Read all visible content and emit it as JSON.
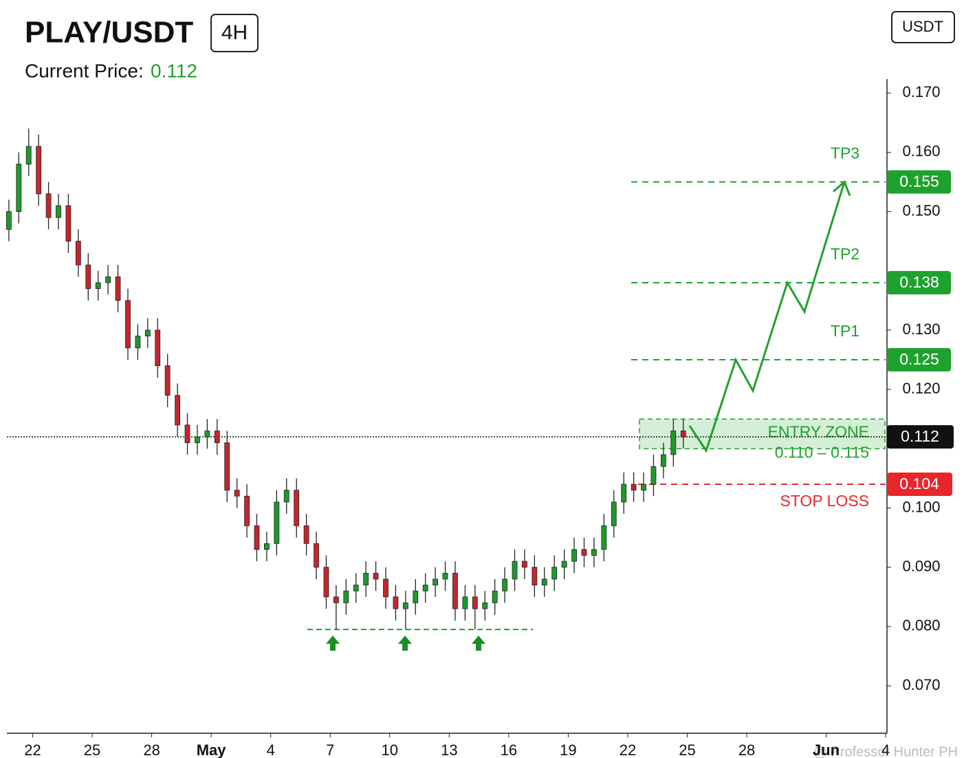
{
  "chart_data": {
    "type": "candlestick",
    "title": "PLAY/USDT",
    "timeframe": "4H",
    "currency_button": "USDT",
    "current_price_label": "Current Price:",
    "current_price": 0.112,
    "watermark": "@ Professor Hunter PH",
    "up_color": "#1e9a2b",
    "down_color": "#c4262e",
    "level_color": "#1fa12e",
    "stop_color": "#e8262b",
    "x": [
      -1.2,
      -0.7,
      -0.2,
      0.3,
      0.8,
      1.3,
      1.8,
      2.3,
      2.8,
      3.3,
      3.8,
      4.3,
      4.8,
      5.3,
      5.8,
      6.3,
      6.8,
      7.3,
      7.8,
      8.3,
      8.8,
      9.3,
      9.8,
      10.3,
      10.8,
      11.3,
      11.8,
      12.3,
      12.8,
      13.3,
      13.8,
      14.3,
      14.8,
      15.3,
      15.8,
      16.3,
      16.8,
      17.3,
      17.8,
      18.3,
      18.8,
      19.3,
      19.8,
      20.3,
      20.8,
      21.3,
      21.8,
      22.3,
      22.8,
      23.3,
      23.8,
      24.3,
      24.8,
      25.3,
      25.8,
      26.3,
      26.8,
      27.3,
      27.8,
      28.3,
      28.8,
      29.3,
      29.8,
      30.3,
      30.8,
      31.3,
      31.8,
      32.3,
      32.8
    ],
    "open": [
      0.147,
      0.15,
      0.158,
      0.161,
      0.153,
      0.149,
      0.151,
      0.145,
      0.141,
      0.137,
      0.138,
      0.139,
      0.135,
      0.127,
      0.129,
      0.13,
      0.124,
      0.119,
      0.114,
      0.111,
      0.112,
      0.113,
      0.111,
      0.103,
      0.102,
      0.097,
      0.093,
      0.094,
      0.101,
      0.103,
      0.097,
      0.094,
      0.09,
      0.085,
      0.084,
      0.086,
      0.087,
      0.089,
      0.088,
      0.085,
      0.083,
      0.084,
      0.086,
      0.087,
      0.088,
      0.089,
      0.083,
      0.085,
      0.083,
      0.084,
      0.086,
      0.088,
      0.091,
      0.09,
      0.087,
      0.088,
      0.09,
      0.091,
      0.093,
      0.092,
      0.093,
      0.097,
      0.101,
      0.104,
      0.103,
      0.104,
      0.107,
      0.109,
      0.113
    ],
    "high": [
      0.152,
      0.16,
      0.164,
      0.163,
      0.155,
      0.153,
      0.153,
      0.147,
      0.143,
      0.14,
      0.141,
      0.141,
      0.137,
      0.131,
      0.132,
      0.132,
      0.126,
      0.121,
      0.116,
      0.114,
      0.115,
      0.115,
      0.113,
      0.105,
      0.104,
      0.099,
      0.096,
      0.103,
      0.105,
      0.105,
      0.099,
      0.096,
      0.092,
      0.087,
      0.088,
      0.089,
      0.091,
      0.091,
      0.09,
      0.087,
      0.086,
      0.088,
      0.089,
      0.09,
      0.091,
      0.091,
      0.087,
      0.087,
      0.086,
      0.088,
      0.09,
      0.093,
      0.093,
      0.092,
      0.09,
      0.092,
      0.093,
      0.095,
      0.095,
      0.095,
      0.099,
      0.103,
      0.106,
      0.106,
      0.106,
      0.109,
      0.111,
      0.115,
      0.115
    ],
    "low": [
      0.145,
      0.148,
      0.156,
      0.151,
      0.147,
      0.147,
      0.143,
      0.139,
      0.135,
      0.135,
      0.136,
      0.133,
      0.125,
      0.125,
      0.127,
      0.122,
      0.117,
      0.112,
      0.109,
      0.109,
      0.11,
      0.109,
      0.101,
      0.1,
      0.095,
      0.091,
      0.091,
      0.092,
      0.099,
      0.095,
      0.092,
      0.088,
      0.083,
      0.0795,
      0.082,
      0.084,
      0.085,
      0.086,
      0.083,
      0.081,
      0.0795,
      0.082,
      0.084,
      0.085,
      0.086,
      0.081,
      0.081,
      0.0795,
      0.081,
      0.082,
      0.084,
      0.086,
      0.088,
      0.085,
      0.085,
      0.086,
      0.088,
      0.089,
      0.09,
      0.09,
      0.091,
      0.095,
      0.099,
      0.101,
      0.101,
      0.102,
      0.105,
      0.107,
      0.11
    ],
    "close": [
      0.15,
      0.158,
      0.161,
      0.153,
      0.149,
      0.151,
      0.145,
      0.141,
      0.137,
      0.138,
      0.139,
      0.135,
      0.127,
      0.129,
      0.13,
      0.124,
      0.119,
      0.114,
      0.111,
      0.112,
      0.113,
      0.111,
      0.103,
      0.102,
      0.097,
      0.093,
      0.094,
      0.101,
      0.103,
      0.097,
      0.094,
      0.09,
      0.085,
      0.084,
      0.086,
      0.087,
      0.089,
      0.088,
      0.085,
      0.083,
      0.084,
      0.086,
      0.087,
      0.088,
      0.089,
      0.083,
      0.085,
      0.083,
      0.084,
      0.086,
      0.088,
      0.091,
      0.09,
      0.087,
      0.088,
      0.09,
      0.091,
      0.093,
      0.092,
      0.093,
      0.097,
      0.101,
      0.104,
      0.103,
      0.104,
      0.107,
      0.109,
      0.113,
      0.112
    ],
    "xlim": [
      -1.3,
      43
    ],
    "xticks": [
      {
        "value": 0,
        "label": "22"
      },
      {
        "value": 3,
        "label": "25"
      },
      {
        "value": 6,
        "label": "28"
      },
      {
        "value": 9,
        "label": "May"
      },
      {
        "value": 12,
        "label": "4"
      },
      {
        "value": 15,
        "label": "7"
      },
      {
        "value": 18,
        "label": "10"
      },
      {
        "value": 21,
        "label": "13"
      },
      {
        "value": 24,
        "label": "16"
      },
      {
        "value": 27,
        "label": "19"
      },
      {
        "value": 30,
        "label": "22"
      },
      {
        "value": 33,
        "label": "25"
      },
      {
        "value": 36,
        "label": "28"
      },
      {
        "value": 40,
        "label": "Jun"
      },
      {
        "value": 43,
        "label": "4"
      }
    ],
    "ylim": [
      0.062,
      0.172
    ],
    "yticks": [
      {
        "value": 0.07,
        "label": "0.070"
      },
      {
        "value": 0.08,
        "label": "0.080"
      },
      {
        "value": 0.09,
        "label": "0.090"
      },
      {
        "value": 0.1,
        "label": "0.100"
      },
      {
        "value": 0.12,
        "label": "0.120"
      },
      {
        "value": 0.13,
        "label": "0.130"
      },
      {
        "value": 0.15,
        "label": "0.150"
      },
      {
        "value": 0.16,
        "label": "0.160"
      },
      {
        "value": 0.17,
        "label": "0.170"
      }
    ],
    "targets": [
      {
        "name": "TP3",
        "value": 0.155
      },
      {
        "name": "TP2",
        "value": 0.138
      },
      {
        "name": "TP1",
        "value": 0.125
      }
    ],
    "entry_zone": {
      "label": "ENTRY ZONE",
      "range_label": "0.110 – 0.115",
      "low": 0.11,
      "high": 0.115
    },
    "stop_loss": {
      "label": "STOP LOSS",
      "value": 0.104
    },
    "support_level": 0.0795
  }
}
